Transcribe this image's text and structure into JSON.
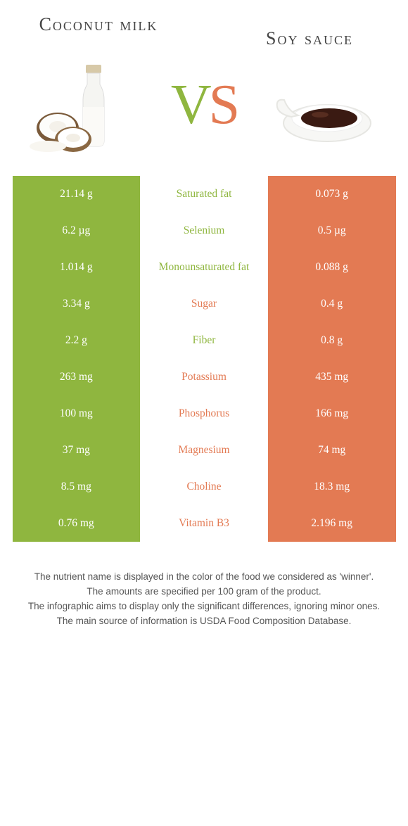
{
  "header": {
    "left_title": "Coconut milk",
    "right_title": "Soy sauce",
    "vs_v": "V",
    "vs_s": "S"
  },
  "colors": {
    "green": "#8fb63f",
    "orange": "#e37a53",
    "white": "#ffffff",
    "row_gap": "#ffffff"
  },
  "rows": [
    {
      "label": "Saturated fat",
      "left": "21.14 g",
      "right": "0.073 g",
      "winner": "left"
    },
    {
      "label": "Selenium",
      "left": "6.2 µg",
      "right": "0.5 µg",
      "winner": "left"
    },
    {
      "label": "Monounsaturated fat",
      "left": "1.014 g",
      "right": "0.088 g",
      "winner": "left"
    },
    {
      "label": "Sugar",
      "left": "3.34 g",
      "right": "0.4 g",
      "winner": "right"
    },
    {
      "label": "Fiber",
      "left": "2.2 g",
      "right": "0.8 g",
      "winner": "left"
    },
    {
      "label": "Potassium",
      "left": "263 mg",
      "right": "435 mg",
      "winner": "right"
    },
    {
      "label": "Phosphorus",
      "left": "100 mg",
      "right": "166 mg",
      "winner": "right"
    },
    {
      "label": "Magnesium",
      "left": "37 mg",
      "right": "74 mg",
      "winner": "right"
    },
    {
      "label": "Choline",
      "left": "8.5 mg",
      "right": "18.3 mg",
      "winner": "right"
    },
    {
      "label": "Vitamin B3",
      "left": "0.76 mg",
      "right": "2.196 mg",
      "winner": "right"
    }
  ],
  "footer": {
    "line1": "The nutrient name is displayed in the color of the food we considered as 'winner'.",
    "line2": "The amounts are specified per 100 gram of the product.",
    "line3": "The infographic aims to display only the significant differences, ignoring minor ones.",
    "line4": "The main source of information is USDA Food Composition Database."
  }
}
